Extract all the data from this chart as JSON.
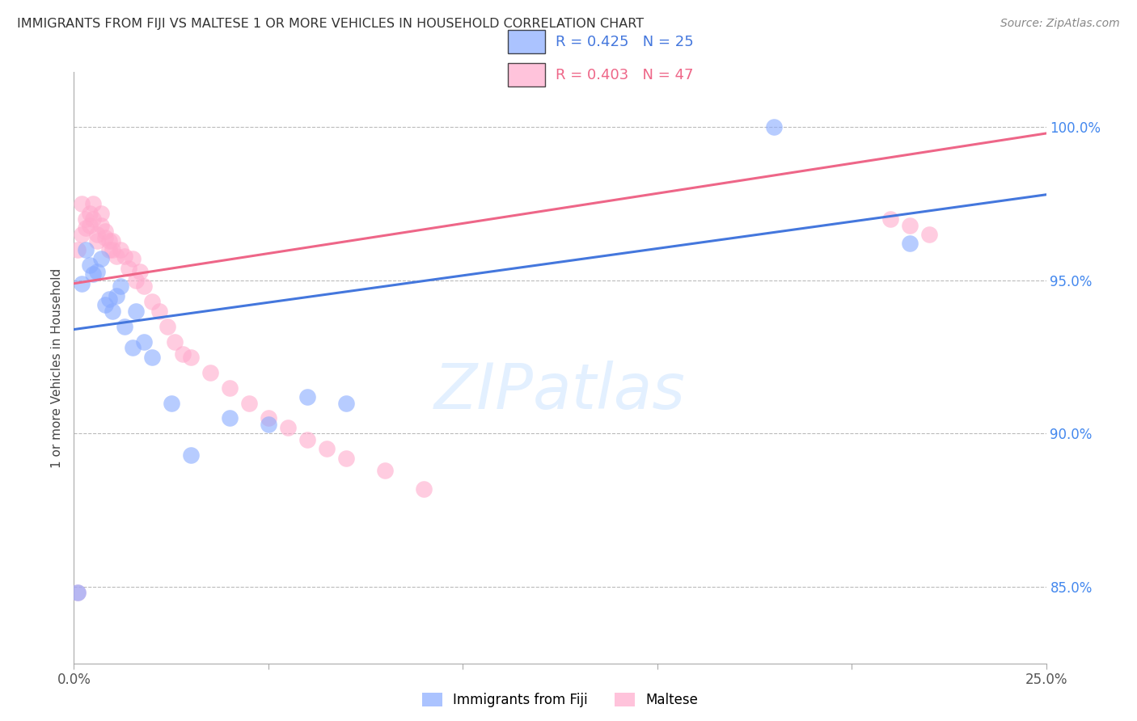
{
  "title": "IMMIGRANTS FROM FIJI VS MALTESE 1 OR MORE VEHICLES IN HOUSEHOLD CORRELATION CHART",
  "source": "Source: ZipAtlas.com",
  "ylabel": "1 or more Vehicles in Household",
  "ytick_labels": [
    "85.0%",
    "90.0%",
    "95.0%",
    "100.0%"
  ],
  "ytick_values": [
    0.85,
    0.9,
    0.95,
    1.0
  ],
  "xlim": [
    0.0,
    0.25
  ],
  "ylim": [
    0.825,
    1.018
  ],
  "fiji_color": "#88aaff",
  "maltese_color": "#ffaacc",
  "fiji_line_color": "#4477dd",
  "maltese_line_color": "#ee6688",
  "fiji_r": 0.425,
  "fiji_n": 25,
  "maltese_r": 0.403,
  "maltese_n": 47,
  "fiji_x": [
    0.001,
    0.002,
    0.003,
    0.004,
    0.005,
    0.006,
    0.007,
    0.008,
    0.009,
    0.01,
    0.011,
    0.012,
    0.013,
    0.015,
    0.016,
    0.018,
    0.02,
    0.025,
    0.03,
    0.04,
    0.05,
    0.06,
    0.07,
    0.18,
    0.215
  ],
  "fiji_y": [
    0.848,
    0.949,
    0.96,
    0.955,
    0.952,
    0.953,
    0.957,
    0.942,
    0.944,
    0.94,
    0.945,
    0.948,
    0.935,
    0.928,
    0.94,
    0.93,
    0.925,
    0.91,
    0.893,
    0.905,
    0.903,
    0.912,
    0.91,
    1.0,
    0.962
  ],
  "maltese_x": [
    0.001,
    0.001,
    0.002,
    0.002,
    0.003,
    0.003,
    0.004,
    0.004,
    0.005,
    0.005,
    0.006,
    0.006,
    0.007,
    0.007,
    0.008,
    0.008,
    0.009,
    0.009,
    0.01,
    0.01,
    0.011,
    0.012,
    0.013,
    0.014,
    0.015,
    0.016,
    0.017,
    0.018,
    0.02,
    0.022,
    0.024,
    0.026,
    0.028,
    0.03,
    0.035,
    0.04,
    0.045,
    0.05,
    0.055,
    0.06,
    0.065,
    0.07,
    0.08,
    0.09,
    0.21,
    0.215,
    0.22
  ],
  "maltese_y": [
    0.848,
    0.96,
    0.965,
    0.975,
    0.967,
    0.97,
    0.968,
    0.972,
    0.97,
    0.975,
    0.963,
    0.965,
    0.968,
    0.972,
    0.964,
    0.966,
    0.96,
    0.963,
    0.963,
    0.96,
    0.958,
    0.96,
    0.958,
    0.954,
    0.957,
    0.95,
    0.953,
    0.948,
    0.943,
    0.94,
    0.935,
    0.93,
    0.926,
    0.925,
    0.92,
    0.915,
    0.91,
    0.905,
    0.902,
    0.898,
    0.895,
    0.892,
    0.888,
    0.882,
    0.97,
    0.968,
    0.965
  ],
  "fiji_line_x": [
    0.0,
    0.25
  ],
  "fiji_line_y": [
    0.934,
    0.978
  ],
  "maltese_line_x": [
    0.0,
    0.25
  ],
  "maltese_line_y": [
    0.949,
    0.998
  ]
}
